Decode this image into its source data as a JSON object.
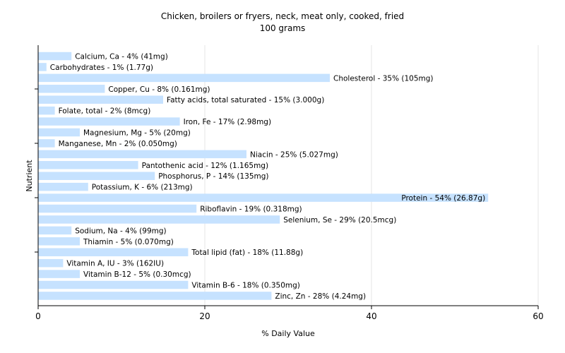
{
  "chart_data": {
    "type": "bar",
    "orientation": "horizontal",
    "title": "Chicken, broilers or fryers, neck, meat only, cooked, fried",
    "subtitle": "100 grams",
    "xlabel": "% Daily Value",
    "ylabel": "Nutrient",
    "xlim": [
      0,
      60
    ],
    "xticks": [
      0,
      20,
      40,
      60
    ],
    "grid": true,
    "bar_color": "#c6e2ff",
    "categories": [
      "Calcium, Ca",
      "Carbohydrates",
      "Cholesterol",
      "Copper, Cu",
      "Fatty acids, total saturated",
      "Folate, total",
      "Iron, Fe",
      "Magnesium, Mg",
      "Manganese, Mn",
      "Niacin",
      "Pantothenic acid",
      "Phosphorus, P",
      "Potassium, K",
      "Protein",
      "Riboflavin",
      "Selenium, Se",
      "Sodium, Na",
      "Thiamin",
      "Total lipid (fat)",
      "Vitamin A, IU",
      "Vitamin B-12",
      "Vitamin B-6",
      "Zinc, Zn"
    ],
    "values": [
      4,
      1,
      35,
      8,
      15,
      2,
      17,
      5,
      2,
      25,
      12,
      14,
      6,
      54,
      19,
      29,
      4,
      5,
      18,
      3,
      5,
      18,
      28
    ],
    "labels": [
      "Calcium, Ca - 4% (41mg)",
      "Carbohydrates - 1% (1.77g)",
      "Cholesterol - 35% (105mg)",
      "Copper, Cu - 8% (0.161mg)",
      "Fatty acids, total saturated - 15% (3.000g)",
      "Folate, total - 2% (8mcg)",
      "Iron, Fe - 17% (2.98mg)",
      "Magnesium, Mg - 5% (20mg)",
      "Manganese, Mn - 2% (0.050mg)",
      "Niacin - 25% (5.027mg)",
      "Pantothenic acid - 12% (1.165mg)",
      "Phosphorus, P - 14% (135mg)",
      "Potassium, K - 6% (213mg)",
      "Protein - 54% (26.87g)",
      "Riboflavin - 19% (0.318mg)",
      "Selenium, Se - 29% (20.5mcg)",
      "Sodium, Na - 4% (99mg)",
      "Thiamin - 5% (0.070mg)",
      "Total lipid (fat) - 18% (11.88g)",
      "Vitamin A, IU - 3% (162IU)",
      "Vitamin B-12 - 5% (0.30mcg)",
      "Vitamin B-6 - 18% (0.350mg)",
      "Zinc, Zn - 28% (4.24mg)"
    ]
  }
}
